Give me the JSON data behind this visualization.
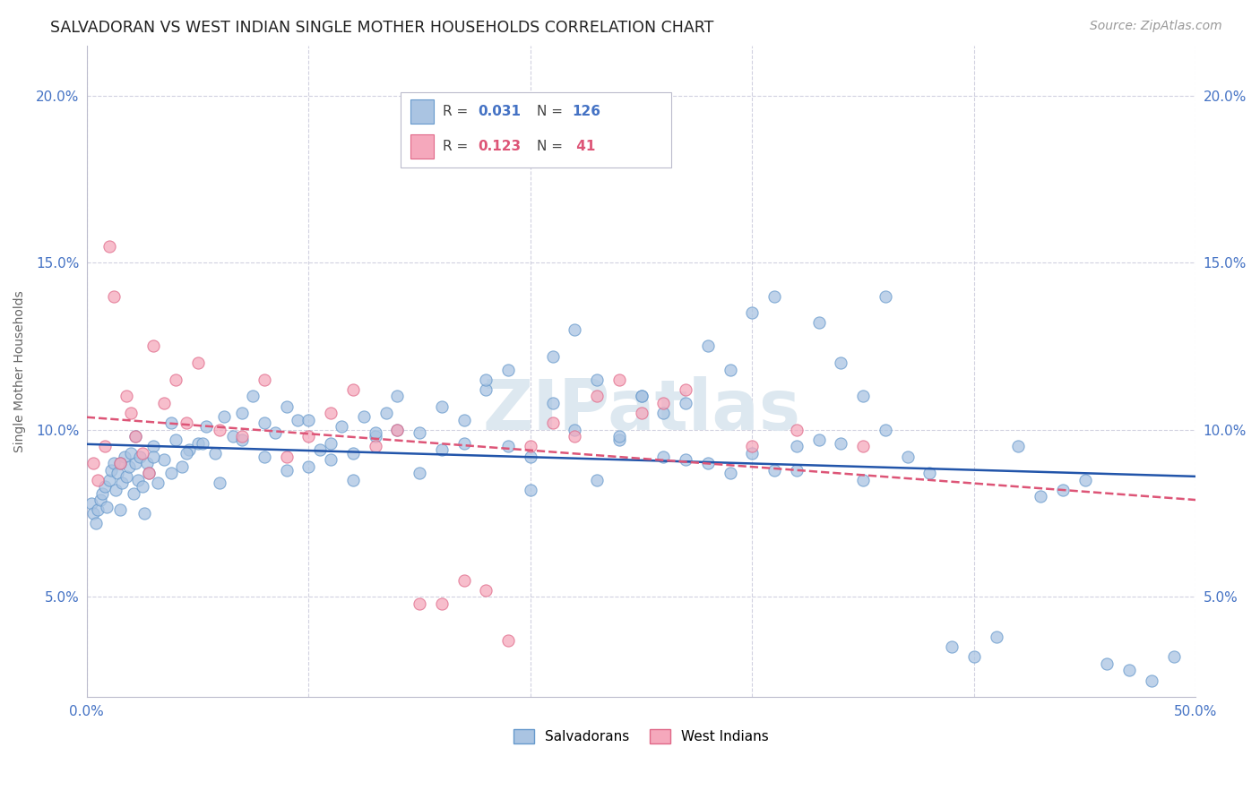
{
  "title": "SALVADORAN VS WEST INDIAN SINGLE MOTHER HOUSEHOLDS CORRELATION CHART",
  "source": "Source: ZipAtlas.com",
  "ylabel": "Single Mother Households",
  "legend_blue_label": "Salvadorans",
  "legend_pink_label": "West Indians",
  "blue_color": "#aac4e2",
  "blue_edge_color": "#6699cc",
  "pink_color": "#f5a8bc",
  "pink_edge_color": "#e06888",
  "blue_line_color": "#2255aa",
  "pink_line_color": "#dd5577",
  "watermark_color": "#dde8f0",
  "background_color": "#ffffff",
  "grid_color": "#ccccdd",
  "xlim": [
    0,
    50
  ],
  "ylim": [
    2.0,
    21.5
  ],
  "xtick_positions": [
    0,
    10,
    20,
    30,
    40,
    50
  ],
  "xtick_labels": [
    "0.0%",
    "",
    "",
    "",
    "",
    "50.0%"
  ],
  "ytick_positions": [
    5,
    10,
    15,
    20
  ],
  "ytick_labels": [
    "5.0%",
    "10.0%",
    "15.0%",
    "20.0%"
  ],
  "blue_points_x": [
    0.2,
    0.3,
    0.4,
    0.5,
    0.6,
    0.7,
    0.8,
    0.9,
    1.0,
    1.1,
    1.2,
    1.3,
    1.4,
    1.5,
    1.6,
    1.7,
    1.8,
    1.9,
    2.0,
    2.1,
    2.2,
    2.3,
    2.4,
    2.5,
    2.6,
    2.7,
    2.8,
    3.0,
    3.2,
    3.5,
    3.8,
    4.0,
    4.3,
    4.6,
    5.0,
    5.4,
    5.8,
    6.2,
    6.6,
    7.0,
    7.5,
    8.0,
    8.5,
    9.0,
    9.5,
    10.0,
    10.5,
    11.0,
    11.5,
    12.0,
    12.5,
    13.0,
    13.5,
    14.0,
    15.0,
    16.0,
    17.0,
    18.0,
    19.0,
    20.0,
    21.0,
    22.0,
    23.0,
    24.0,
    25.0,
    26.0,
    27.0,
    28.0,
    29.0,
    30.0,
    31.0,
    32.0,
    33.0,
    34.0,
    35.0,
    36.0,
    37.0,
    38.0,
    39.0,
    40.0,
    41.0,
    42.0,
    43.0,
    44.0,
    45.0,
    46.0,
    47.0,
    48.0,
    49.0,
    1.5,
    2.2,
    3.0,
    3.8,
    4.5,
    5.2,
    6.0,
    7.0,
    8.0,
    9.0,
    10.0,
    11.0,
    12.0,
    13.0,
    14.0,
    15.0,
    16.0,
    17.0,
    18.0,
    19.0,
    20.0,
    21.0,
    22.0,
    23.0,
    24.0,
    25.0,
    26.0,
    27.0,
    28.0,
    29.0,
    30.0,
    31.0,
    32.0,
    33.0,
    34.0,
    35.0,
    36.0
  ],
  "blue_points_y": [
    7.8,
    7.5,
    7.2,
    7.6,
    7.9,
    8.1,
    8.3,
    7.7,
    8.5,
    8.8,
    9.0,
    8.2,
    8.7,
    7.6,
    8.4,
    9.2,
    8.6,
    8.9,
    9.3,
    8.1,
    9.0,
    8.5,
    9.2,
    8.3,
    7.5,
    9.0,
    8.7,
    9.5,
    8.4,
    9.1,
    10.2,
    9.7,
    8.9,
    9.4,
    9.6,
    10.1,
    9.3,
    10.4,
    9.8,
    10.5,
    11.0,
    10.2,
    9.9,
    10.7,
    10.3,
    8.9,
    9.4,
    9.6,
    10.1,
    9.3,
    10.4,
    9.8,
    10.5,
    11.0,
    9.9,
    10.7,
    10.3,
    11.2,
    9.5,
    9.2,
    10.8,
    13.0,
    11.5,
    9.7,
    11.0,
    10.5,
    9.1,
    12.5,
    11.8,
    13.5,
    14.0,
    8.8,
    13.2,
    9.6,
    8.5,
    10.0,
    9.2,
    8.7,
    3.5,
    3.2,
    3.8,
    9.5,
    8.0,
    8.2,
    8.5,
    3.0,
    2.8,
    2.5,
    3.2,
    9.0,
    9.8,
    9.2,
    8.7,
    9.3,
    9.6,
    8.4,
    9.7,
    9.2,
    8.8,
    10.3,
    9.1,
    8.5,
    9.9,
    10.0,
    8.7,
    9.4,
    9.6,
    11.5,
    11.8,
    8.2,
    12.2,
    10.0,
    8.5,
    9.8,
    11.0,
    9.2,
    10.8,
    9.0,
    8.7,
    9.3,
    8.8,
    9.5,
    9.7,
    12.0,
    11.0,
    14.0
  ],
  "pink_points_x": [
    0.3,
    0.5,
    0.8,
    1.0,
    1.2,
    1.5,
    1.8,
    2.0,
    2.2,
    2.5,
    2.8,
    3.0,
    3.5,
    4.0,
    4.5,
    5.0,
    6.0,
    7.0,
    8.0,
    9.0,
    10.0,
    11.0,
    12.0,
    13.0,
    14.0,
    15.0,
    16.0,
    17.0,
    18.0,
    19.0,
    20.0,
    21.0,
    22.0,
    23.0,
    24.0,
    25.0,
    26.0,
    27.0,
    30.0,
    32.0,
    35.0
  ],
  "pink_points_y": [
    9.0,
    8.5,
    9.5,
    15.5,
    14.0,
    9.0,
    11.0,
    10.5,
    9.8,
    9.3,
    8.7,
    12.5,
    10.8,
    11.5,
    10.2,
    12.0,
    10.0,
    9.8,
    11.5,
    9.2,
    9.8,
    10.5,
    11.2,
    9.5,
    10.0,
    4.8,
    4.8,
    5.5,
    5.2,
    3.7,
    9.5,
    10.2,
    9.8,
    11.0,
    11.5,
    10.5,
    10.8,
    11.2,
    9.5,
    10.0,
    9.5
  ]
}
